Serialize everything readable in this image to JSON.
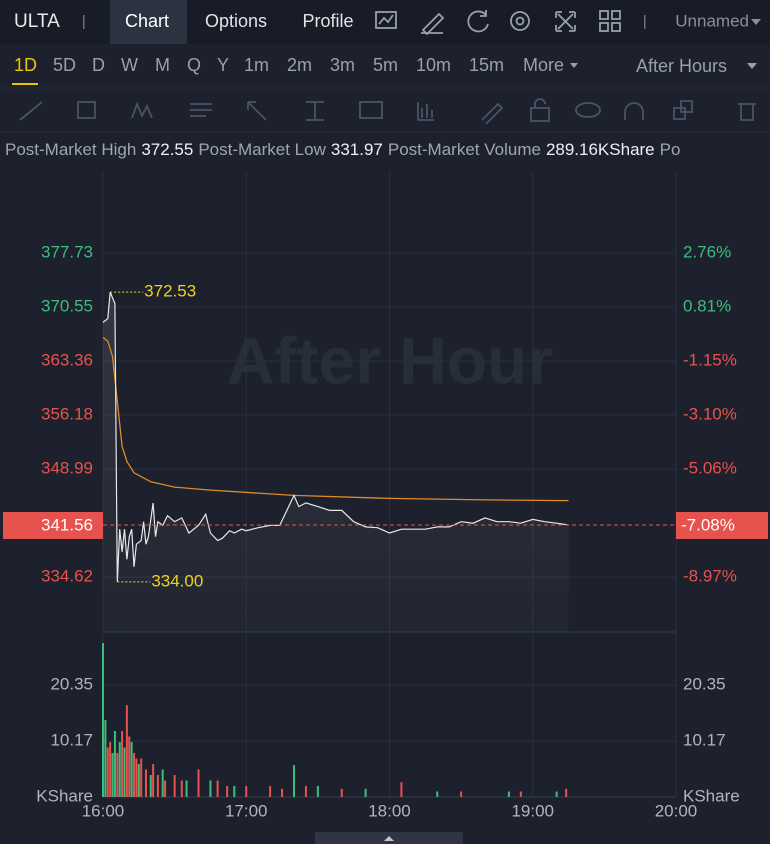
{
  "header": {
    "symbol": "ULTA",
    "tabs": [
      "Chart",
      "Options",
      "Profile"
    ],
    "layout": "Unnamed"
  },
  "timeframes": {
    "items": [
      "1D",
      "5D",
      "D",
      "W",
      "M",
      "Q",
      "Y",
      "1m",
      "2m",
      "3m",
      "5m",
      "10m",
      "15m",
      "More"
    ],
    "session": "After Hours"
  },
  "stats": [
    {
      "label": "Post-Market High",
      "value": "372.55"
    },
    {
      "label": "Post-Market Low",
      "value": "331.97"
    },
    {
      "label": "Post-Market Volume",
      "value": "289.16KShare"
    },
    {
      "label": "Po"
    }
  ],
  "chart": {
    "watermark": "After Hour",
    "xlim": [
      "16:00",
      "20:00"
    ],
    "xticks": [
      "16:00",
      "17:00",
      "18:00",
      "19:00",
      "20:00"
    ],
    "ylim": [
      327.33,
      388.5
    ],
    "yticks": [
      377.73,
      370.55,
      363.36,
      356.18,
      348.99,
      334.62
    ],
    "y2lim": [
      -10.95,
      5.69
    ],
    "y2ticks": [
      {
        "value": 2.76,
        "label": "2.76%"
      },
      {
        "value": 0.81,
        "label": "0.81%"
      },
      {
        "value": -1.15,
        "label": "-1.15%"
      },
      {
        "value": -3.1,
        "label": "-3.10%"
      },
      {
        "value": -5.06,
        "label": "-5.06%"
      },
      {
        "value": -8.97,
        "label": "-8.97%"
      }
    ],
    "up_color": "#3dbd7d",
    "down_color": "#e6534e",
    "price": {
      "color": "#e8e8e8",
      "x": [
        "16:00",
        "16:02",
        "16:03",
        "16:05",
        "16:06",
        "16:07",
        "16:08",
        "16:09",
        "16:10",
        "16:11",
        "16:12",
        "16:13",
        "16:14",
        "16:16",
        "16:17",
        "16:18",
        "16:19",
        "16:21",
        "16:22",
        "16:23",
        "16:25",
        "16:27",
        "16:30",
        "16:33",
        "16:36",
        "16:40",
        "16:43",
        "16:45",
        "16:48",
        "16:50",
        "16:53",
        "16:55",
        "16:58",
        "17:00",
        "17:05",
        "17:10",
        "17:14",
        "17:20",
        "17:22",
        "17:25",
        "17:30",
        "17:35",
        "17:40",
        "17:45",
        "17:50",
        "17:55",
        "18:00",
        "18:05",
        "18:10",
        "18:15",
        "18:20",
        "18:25",
        "18:30",
        "18:35",
        "18:40",
        "18:45",
        "18:50",
        "18:55",
        "19:00",
        "19:05",
        "19:10",
        "19:15"
      ],
      "values": [
        368.5,
        369,
        372.53,
        371,
        334,
        341,
        338,
        341,
        337,
        340,
        341,
        336,
        339,
        339.5,
        342,
        339,
        340,
        344.5,
        340,
        342,
        341.5,
        342.8,
        342,
        342.5,
        340.5,
        341.5,
        343,
        340.5,
        339.5,
        339.8,
        340.8,
        340.5,
        341,
        340.8,
        341.2,
        341.5,
        341.5,
        345.5,
        344,
        344.5,
        344,
        343.5,
        343.5,
        342,
        341.3,
        341.2,
        340.5,
        341,
        341,
        341,
        341.3,
        341.3,
        342,
        341.8,
        342.5,
        342,
        342,
        341.8,
        342.3,
        342,
        341.8,
        341.56
      ]
    },
    "average": {
      "color": "#e08a2a",
      "x": [
        "16:00",
        "16:02",
        "16:04",
        "16:06",
        "16:08",
        "16:10",
        "16:13",
        "16:20",
        "16:30",
        "16:45",
        "17:20",
        "18:00",
        "18:40",
        "19:15"
      ],
      "values": [
        366.5,
        366,
        364,
        358,
        352,
        350,
        348.5,
        347.3,
        346.6,
        346.2,
        345.5,
        345.1,
        344.9,
        344.8
      ]
    },
    "high_low": {
      "color": "#f0d020",
      "x": [
        "16:03",
        "16:06"
      ],
      "values": [
        372.53,
        334
      ],
      "value_labels": [
        "372.53",
        "334.00"
      ]
    },
    "last": {
      "value": 341.56,
      "change": {
        "value": -7.08,
        "label": "-7.08%"
      }
    },
    "volume": {
      "ylim": [
        0,
        30
      ],
      "yticks": [
        {
          "value": 0,
          "label": "KShare"
        },
        10.17,
        20.35
      ],
      "series": [
        {
          "color": "#3dbd7d",
          "x": [
            "16:00",
            "16:01",
            "16:04",
            "16:05",
            "16:07",
            "16:09",
            "16:12",
            "16:15",
            "16:20",
            "16:25",
            "16:35",
            "16:45",
            "16:55",
            "17:20",
            "17:30",
            "17:50",
            "18:20",
            "18:50",
            "19:10"
          ],
          "values": [
            28,
            14,
            8,
            12,
            10,
            9,
            10,
            6,
            4,
            5,
            3,
            3,
            2,
            5.8,
            2,
            1.5,
            1,
            1,
            1
          ]
        },
        {
          "color": "#e6534e",
          "x": [
            "16:02",
            "16:03",
            "16:06",
            "16:08",
            "16:10",
            "16:11",
            "16:13",
            "16:14",
            "16:16",
            "16:18",
            "16:21",
            "16:23",
            "16:26",
            "16:30",
            "16:33",
            "16:40",
            "16:48",
            "16:52",
            "17:00",
            "17:10",
            "17:15",
            "17:25",
            "17:40",
            "18:05",
            "18:30",
            "18:55",
            "19:14"
          ],
          "values": [
            9,
            10,
            8,
            12,
            16.7,
            11,
            8,
            7,
            7,
            5,
            6,
            4,
            3,
            4,
            3,
            5,
            3,
            2,
            2,
            2,
            1.5,
            2,
            1.5,
            2.7,
            1,
            1,
            1.5
          ]
        }
      ]
    }
  }
}
